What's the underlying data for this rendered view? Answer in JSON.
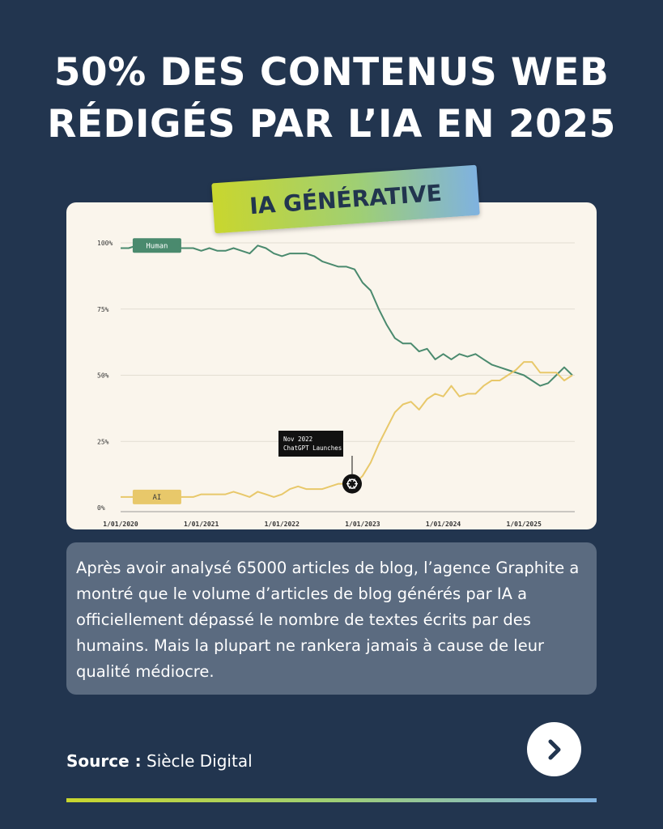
{
  "headline": {
    "line1": "50% DES CONTENUS WEB",
    "line2": "RÉDIGÉS PAR L’IA EN 2025"
  },
  "badge": {
    "label": "IA GÉNÉRATIVE"
  },
  "description": "Après avoir analysé 65000 articles de blog, l’agence Graphite a montré que le volume d’articles de blog générés par IA a officiellement dépassé le nombre de textes écrits par des humains. Mais la plupart ne rankera jamais à cause de leur qualité médiocre.",
  "source": {
    "label": "Source :",
    "value": "Siècle Digital"
  },
  "next_button": {
    "icon": "chevron-right-icon"
  },
  "colors": {
    "background": "#22354f",
    "human": "#4a8a6e",
    "ai": "#e8c86a",
    "card": "#faf5ec"
  },
  "chart_data": {
    "type": "line",
    "x_tick_labels": [
      "1/01/2020",
      "1/01/2021",
      "1/01/2022",
      "1/01/2023",
      "1/01/2024",
      "1/01/2025"
    ],
    "y_tick_labels": [
      "100%",
      "75%",
      "50%",
      "25%",
      "0%"
    ],
    "y_ticks": [
      100,
      75,
      50,
      25,
      0
    ],
    "ylim": [
      0,
      100
    ],
    "xlim": [
      2019.97,
      2025.63
    ],
    "grid": true,
    "annotation": {
      "x": 2022.87,
      "y": 9,
      "line1": "Nov 2022",
      "line2": "ChatGPT Launches",
      "icon": "openai-logo-icon"
    },
    "series": [
      {
        "name": "Human",
        "color": "#4a8a6e",
        "x": [
          2020.0,
          2020.1,
          2020.2,
          2020.3,
          2020.4,
          2020.5,
          2020.6,
          2020.7,
          2020.8,
          2020.9,
          2021.0,
          2021.1,
          2021.2,
          2021.3,
          2021.4,
          2021.5,
          2021.6,
          2021.7,
          2021.8,
          2021.9,
          2022.0,
          2022.1,
          2022.2,
          2022.3,
          2022.4,
          2022.5,
          2022.6,
          2022.7,
          2022.8,
          2022.9,
          2023.0,
          2023.1,
          2023.2,
          2023.3,
          2023.4,
          2023.5,
          2023.6,
          2023.7,
          2023.8,
          2023.9,
          2024.0,
          2024.1,
          2024.2,
          2024.3,
          2024.4,
          2024.5,
          2024.6,
          2024.7,
          2024.8,
          2024.9,
          2025.0,
          2025.1,
          2025.2,
          2025.3,
          2025.4,
          2025.5,
          2025.6
        ],
        "values": [
          98,
          98,
          99,
          99,
          99,
          98,
          99,
          98,
          98,
          98,
          97,
          98,
          97,
          97,
          98,
          97,
          96,
          99,
          98,
          96,
          95,
          96,
          96,
          96,
          95,
          93,
          92,
          91,
          91,
          90,
          85,
          82,
          75,
          69,
          64,
          62,
          62,
          59,
          60,
          56,
          58,
          56,
          58,
          57,
          58,
          56,
          54,
          53,
          52,
          51,
          50,
          48,
          46,
          47,
          50,
          53,
          50
        ]
      },
      {
        "name": "AI",
        "color": "#e8c86a",
        "x": [
          2020.0,
          2020.1,
          2020.2,
          2020.3,
          2020.4,
          2020.5,
          2020.6,
          2020.7,
          2020.8,
          2020.9,
          2021.0,
          2021.1,
          2021.2,
          2021.3,
          2021.4,
          2021.5,
          2021.6,
          2021.7,
          2021.8,
          2021.9,
          2022.0,
          2022.1,
          2022.2,
          2022.3,
          2022.4,
          2022.5,
          2022.6,
          2022.7,
          2022.8,
          2022.9,
          2023.0,
          2023.1,
          2023.2,
          2023.3,
          2023.4,
          2023.5,
          2023.6,
          2023.7,
          2023.8,
          2023.9,
          2024.0,
          2024.1,
          2024.2,
          2024.3,
          2024.4,
          2024.5,
          2024.6,
          2024.7,
          2024.8,
          2024.9,
          2025.0,
          2025.1,
          2025.2,
          2025.3,
          2025.4,
          2025.5,
          2025.6
        ],
        "values": [
          4,
          4,
          4,
          4,
          4,
          5,
          5,
          4,
          4,
          4,
          5,
          5,
          5,
          5,
          6,
          5,
          4,
          6,
          5,
          4,
          5,
          7,
          8,
          7,
          7,
          7,
          8,
          9,
          9,
          9,
          12,
          17,
          24,
          30,
          36,
          39,
          40,
          37,
          41,
          43,
          42,
          46,
          42,
          43,
          43,
          46,
          48,
          48,
          50,
          52,
          55,
          55,
          51,
          51,
          51,
          48,
          50
        ]
      }
    ]
  }
}
